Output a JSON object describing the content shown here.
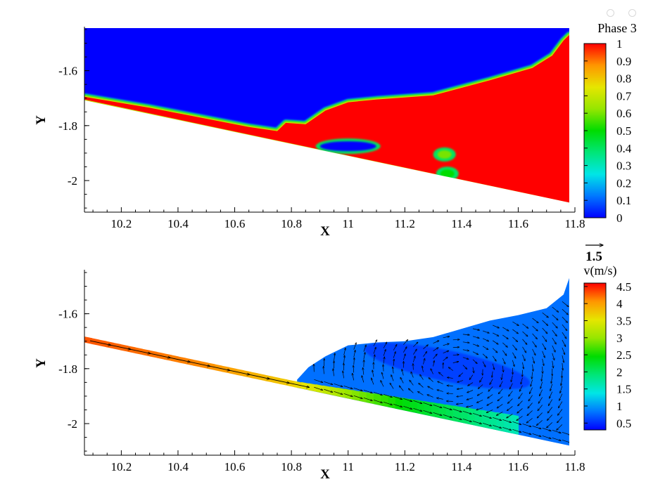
{
  "chart_data": [
    {
      "type": "heatmap",
      "title": "",
      "xlabel": "X",
      "ylabel": "Y",
      "xlim": [
        10.07,
        11.8
      ],
      "ylim": [
        -2.115,
        -1.445
      ],
      "xticks": [
        "10.2",
        "10.4",
        "10.6",
        "10.8",
        "11",
        "11.2",
        "11.4",
        "11.6",
        "11.8"
      ],
      "xtick_values": [
        10.2,
        10.4,
        10.6,
        10.8,
        11.0,
        11.2,
        11.4,
        11.6,
        11.8
      ],
      "yticks": [
        "-1.6",
        "-1.8",
        "-2"
      ],
      "ytick_values": [
        -1.6,
        -1.8,
        -2.0
      ],
      "grid": false,
      "legend": {
        "title": "Phase 3",
        "placement": "right",
        "labels": [
          "1",
          "0.9",
          "0.8",
          "0.7",
          "0.6",
          "0.5",
          "0.4",
          "0.3",
          "0.2",
          "0.1",
          "0"
        ],
        "min": 0,
        "max": 1
      },
      "colormap": [
        "#0000ff",
        "#0078ff",
        "#00e6e6",
        "#00e678",
        "#00dc00",
        "#96e600",
        "#e6e600",
        "#ff9600",
        "#ff0000"
      ],
      "bottom_boundary": {
        "x": [
          10.07,
          11.78
        ],
        "y": [
          -1.705,
          -2.08
        ]
      },
      "interface": {
        "x": [
          10.07,
          10.3,
          10.5,
          10.65,
          10.75,
          10.78,
          10.85,
          10.92,
          11.0,
          11.1,
          11.3,
          11.5,
          11.65,
          11.72,
          11.76,
          11.78
        ],
        "y": [
          -1.695,
          -1.735,
          -1.775,
          -1.805,
          -1.82,
          -1.79,
          -1.795,
          -1.745,
          -1.715,
          -1.705,
          -1.69,
          -1.635,
          -1.59,
          -1.545,
          -1.49,
          -1.47
        ]
      },
      "bubbles": [
        {
          "x": 11.0,
          "y": -1.875,
          "phase": 0
        },
        {
          "x": 11.34,
          "y": -1.905,
          "phase": 0.6
        },
        {
          "x": 11.35,
          "y": -1.975,
          "phase": 0.5
        }
      ]
    },
    {
      "type": "heatmap",
      "title": "",
      "xlabel": "X",
      "ylabel": "Y",
      "xlim": [
        10.07,
        11.8
      ],
      "ylim": [
        -2.115,
        -1.445
      ],
      "xticks": [
        "10.2",
        "10.4",
        "10.6",
        "10.8",
        "11",
        "11.2",
        "11.4",
        "11.6",
        "11.8"
      ],
      "xtick_values": [
        10.2,
        10.4,
        10.6,
        10.8,
        11.0,
        11.2,
        11.4,
        11.6,
        11.8
      ],
      "yticks": [
        "-1.6",
        "-1.8",
        "-2"
      ],
      "ytick_values": [
        -1.6,
        -1.8,
        -2.0
      ],
      "grid": false,
      "vector_reference": {
        "label": "1.5",
        "value": 1.5
      },
      "legend": {
        "title": "v(m/s)",
        "placement": "right",
        "labels": [
          "4.5",
          "4",
          "3.5",
          "3",
          "2.5",
          "2",
          "1.5",
          "1",
          "0.5"
        ],
        "min": 0.3,
        "max": 4.6
      },
      "colormap": [
        "#0000ff",
        "#0078ff",
        "#00e6e6",
        "#00e678",
        "#00dc00",
        "#96e600",
        "#e6e600",
        "#ff9600",
        "#ff0000"
      ],
      "bottom_boundary": {
        "x": [
          10.07,
          11.78
        ],
        "y": [
          -1.705,
          -2.08
        ]
      },
      "jet_band": {
        "x": [
          10.07,
          10.5,
          10.8,
          11.0,
          11.2,
          11.4,
          11.6
        ],
        "speed": [
          4.3,
          4.1,
          3.7,
          3.0,
          2.4,
          2.0,
          1.6
        ]
      },
      "roller_top": {
        "x": [
          10.82,
          10.86,
          10.92,
          11.0,
          11.1,
          11.2,
          11.3,
          11.4,
          11.5,
          11.6,
          11.7,
          11.76,
          11.78
        ],
        "y": [
          -1.84,
          -1.795,
          -1.755,
          -1.715,
          -1.705,
          -1.7,
          -1.685,
          -1.655,
          -1.625,
          -1.605,
          -1.58,
          -1.53,
          -1.47
        ]
      },
      "roller_speed": 0.8
    }
  ]
}
